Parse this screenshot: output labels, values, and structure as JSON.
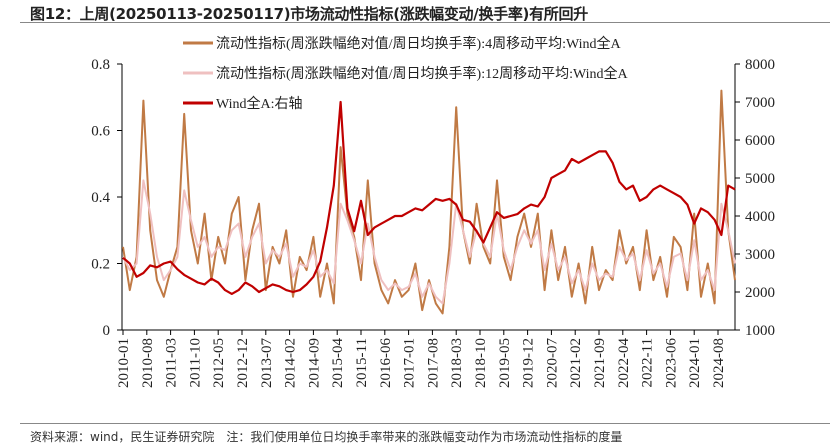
{
  "title": "图12：上周(20250113-20250117)市场流动性指标(涨跌幅变动/换手率)有所回升",
  "footer": "资料来源：wind，民生证券研究院　注：我们使用单位日均换手率带来的涨跌幅变动作为市场流动性指标的度量",
  "chart_data": {
    "type": "line",
    "x_start": "2010-01",
    "x_step_months": 2,
    "x_tick_labels": [
      "2010-01",
      "2010-08",
      "2011-03",
      "2011-10",
      "2012-05",
      "2012-12",
      "2013-07",
      "2014-02",
      "2014-09",
      "2015-04",
      "2015-11",
      "2016-06",
      "2017-01",
      "2017-08",
      "2018-03",
      "2018-10",
      "2019-05",
      "2019-12",
      "2020-07",
      "2021-02",
      "2021-09",
      "2022-04",
      "2022-11",
      "2023-06",
      "2024-01",
      "2024-08"
    ],
    "x_range": [
      "2010-01",
      "2025-01"
    ],
    "y_left": {
      "range": [
        0,
        0.8
      ],
      "ticks": [
        "0",
        "0.2",
        "0.4",
        "0.6",
        "0.8"
      ]
    },
    "y_right": {
      "range": [
        1000,
        8000
      ],
      "ticks": [
        "1000",
        "2000",
        "3000",
        "4000",
        "5000",
        "6000",
        "7000",
        "8000"
      ]
    },
    "grid": false,
    "legend_position": "top-left",
    "series": [
      {
        "name": "流动性指标(周涨跌幅绝对值/周日均换手率):4周移动平均:Wind全A",
        "axis": "left",
        "color": "#C07A45",
        "values": [
          0.25,
          0.12,
          0.22,
          0.69,
          0.3,
          0.15,
          0.1,
          0.18,
          0.25,
          0.65,
          0.3,
          0.2,
          0.35,
          0.15,
          0.28,
          0.2,
          0.35,
          0.4,
          0.15,
          0.3,
          0.38,
          0.12,
          0.25,
          0.2,
          0.3,
          0.1,
          0.22,
          0.18,
          0.28,
          0.1,
          0.2,
          0.08,
          0.55,
          0.35,
          0.28,
          0.15,
          0.45,
          0.2,
          0.12,
          0.08,
          0.15,
          0.1,
          0.12,
          0.2,
          0.06,
          0.15,
          0.08,
          0.05,
          0.25,
          0.67,
          0.3,
          0.2,
          0.38,
          0.25,
          0.2,
          0.45,
          0.22,
          0.15,
          0.28,
          0.35,
          0.25,
          0.35,
          0.12,
          0.3,
          0.15,
          0.25,
          0.1,
          0.2,
          0.08,
          0.25,
          0.12,
          0.18,
          0.15,
          0.3,
          0.2,
          0.25,
          0.12,
          0.3,
          0.15,
          0.22,
          0.1,
          0.28,
          0.25,
          0.12,
          0.35,
          0.1,
          0.2,
          0.08,
          0.72,
          0.3,
          0.15
        ]
      },
      {
        "name": "流动性指标(周涨跌幅绝对值/周日均换手率):12周移动平均:Wind全A",
        "axis": "left",
        "color": "#EFC0C0",
        "values": [
          0.22,
          0.18,
          0.2,
          0.45,
          0.35,
          0.22,
          0.15,
          0.18,
          0.22,
          0.42,
          0.33,
          0.25,
          0.28,
          0.22,
          0.25,
          0.24,
          0.3,
          0.32,
          0.22,
          0.28,
          0.32,
          0.2,
          0.24,
          0.22,
          0.26,
          0.16,
          0.2,
          0.19,
          0.24,
          0.16,
          0.18,
          0.14,
          0.38,
          0.33,
          0.27,
          0.2,
          0.32,
          0.22,
          0.15,
          0.12,
          0.14,
          0.12,
          0.13,
          0.17,
          0.1,
          0.14,
          0.1,
          0.08,
          0.2,
          0.38,
          0.3,
          0.22,
          0.3,
          0.26,
          0.22,
          0.35,
          0.24,
          0.18,
          0.25,
          0.3,
          0.26,
          0.3,
          0.18,
          0.26,
          0.18,
          0.22,
          0.14,
          0.18,
          0.12,
          0.2,
          0.15,
          0.17,
          0.16,
          0.25,
          0.21,
          0.23,
          0.15,
          0.24,
          0.17,
          0.2,
          0.13,
          0.22,
          0.23,
          0.15,
          0.27,
          0.15,
          0.18,
          0.12,
          0.38,
          0.3,
          0.2
        ]
      },
      {
        "name": "Wind全A:右轴",
        "axis": "right",
        "color": "#C00000",
        "values": [
          2900,
          2750,
          2400,
          2500,
          2700,
          2650,
          2750,
          2800,
          2600,
          2450,
          2350,
          2250,
          2200,
          2350,
          2250,
          2050,
          1950,
          2050,
          2250,
          2150,
          2000,
          2100,
          2200,
          2150,
          2050,
          2000,
          2050,
          2200,
          2400,
          2800,
          3700,
          4800,
          7000,
          4200,
          3600,
          4400,
          3500,
          3700,
          3800,
          3900,
          4000,
          4000,
          4100,
          4200,
          4150,
          4300,
          4450,
          4400,
          4450,
          4300,
          3900,
          3850,
          3600,
          3300,
          3700,
          4100,
          3950,
          4000,
          4050,
          4200,
          4300,
          4250,
          4500,
          5000,
          5100,
          5200,
          5500,
          5400,
          5500,
          5600,
          5700,
          5700,
          5400,
          4900,
          4700,
          4800,
          4400,
          4500,
          4700,
          4800,
          4700,
          4600,
          4500,
          4300,
          3800,
          4200,
          4100,
          3900,
          3500,
          4800,
          4700
        ]
      }
    ]
  }
}
